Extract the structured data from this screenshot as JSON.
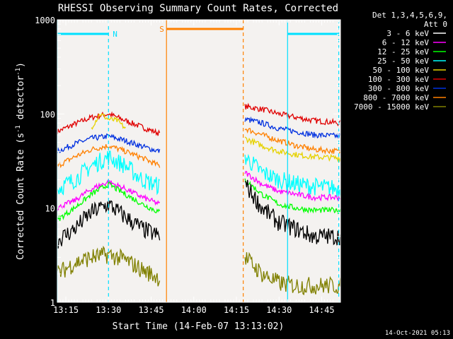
{
  "chart_data": {
    "type": "line",
    "title": "RHESSI Observing Summary Count Rates, Corrected",
    "xlabel": "Start Time (14-Feb-07 13:13:02)",
    "ylabel_main": "Corrected Count Rate (s",
    "ylabel_sup1": "-1",
    "ylabel_mid": " detector",
    "ylabel_sup2": "-1",
    "ylabel_end": ")",
    "y_scale": "log",
    "ylim": [
      1,
      1000
    ],
    "xlim_minutes": [
      13.2,
      14.86
    ],
    "x_ticks": [
      {
        "t": 13.25,
        "label": "13:15"
      },
      {
        "t": 13.5,
        "label": "13:30"
      },
      {
        "t": 13.75,
        "label": "13:45"
      },
      {
        "t": 14.0,
        "label": "14:00"
      },
      {
        "t": 14.25,
        "label": "14:15"
      },
      {
        "t": 14.5,
        "label": "14:30"
      },
      {
        "t": 14.75,
        "label": "14:45"
      }
    ],
    "y_ticks": [
      {
        "v": 1,
        "label": "1"
      },
      {
        "v": 10,
        "label": "10"
      },
      {
        "v": 100,
        "label": "100"
      },
      {
        "v": 1000,
        "label": "1000"
      }
    ],
    "legend": {
      "header1": "Det 1,3,4,5,6,9,",
      "header2": "Att 0",
      "placement": "right",
      "entries": [
        {
          "label": "3 - 6 keV",
          "color": "#000000"
        },
        {
          "label": "6 - 12 keV",
          "color": "#ff00ff"
        },
        {
          "label": "12 - 25 keV",
          "color": "#00ff00"
        },
        {
          "label": "25 - 50 keV",
          "color": "#00ffff"
        },
        {
          "label": "50 - 100 keV",
          "color": "#e6d200"
        },
        {
          "label": "100 - 300 keV",
          "color": "#e00000"
        },
        {
          "label": "300 - 800 keV",
          "color": "#0030e0"
        },
        {
          "label": "800 - 7000 keV",
          "color": "#ff8000"
        },
        {
          "label": "7000 - 15000 keV",
          "color": "#808000"
        }
      ]
    },
    "annotations": [
      {
        "label": "N",
        "color": "#00e0ff",
        "t_start": 13.2,
        "t_end": 13.5
      },
      {
        "label": "S",
        "color": "#ff8000",
        "t_start": 13.84,
        "t_end": 14.29
      },
      {
        "label": "",
        "color": "#00e0ff",
        "t_start": 14.55,
        "t_end": 14.85
      }
    ],
    "vlines": [
      {
        "t": 13.2,
        "color": "#00e0ff",
        "style": "solid"
      },
      {
        "t": 13.5,
        "color": "#00e0ff",
        "style": "dashed"
      },
      {
        "t": 13.84,
        "color": "#ff8000",
        "style": "solid"
      },
      {
        "t": 14.29,
        "color": "#ff8000",
        "style": "dashed"
      },
      {
        "t": 14.55,
        "color": "#00e0ff",
        "style": "solid"
      },
      {
        "t": 14.85,
        "color": "#00e0ff",
        "style": "dashed"
      }
    ],
    "series": [
      {
        "name": "100 - 300 keV",
        "color": "#e00000",
        "segment1": {
          "t": [
            13.2,
            13.3,
            13.4,
            13.5,
            13.6,
            13.7,
            13.8
          ],
          "v": [
            65,
            78,
            92,
            100,
            85,
            72,
            62
          ]
        },
        "segment2": {
          "t": [
            14.3,
            14.4,
            14.5,
            14.6,
            14.7,
            14.86
          ],
          "v": [
            120,
            112,
            100,
            92,
            85,
            80
          ]
        }
      },
      {
        "name": "300 - 800 keV",
        "color": "#0030e0",
        "segment1": {
          "t": [
            13.2,
            13.3,
            13.4,
            13.5,
            13.6,
            13.7,
            13.8
          ],
          "v": [
            40,
            48,
            55,
            58,
            52,
            45,
            40
          ]
        },
        "segment2": {
          "t": [
            14.3,
            14.4,
            14.5,
            14.6,
            14.7,
            14.86
          ],
          "v": [
            88,
            80,
            70,
            65,
            60,
            58
          ]
        }
      },
      {
        "name": "800 - 7000 keV",
        "color": "#ff8000",
        "segment1": {
          "t": [
            13.2,
            13.3,
            13.4,
            13.5,
            13.6,
            13.7,
            13.8
          ],
          "v": [
            28,
            35,
            42,
            46,
            40,
            34,
            28
          ]
        },
        "segment2": {
          "t": [
            14.3,
            14.4,
            14.5,
            14.6,
            14.7,
            14.86
          ],
          "v": [
            70,
            60,
            52,
            46,
            42,
            40
          ]
        }
      },
      {
        "name": "50 - 100 keV",
        "color": "#e6d200",
        "segment1": {
          "t": [
            13.4,
            13.45,
            13.5,
            13.55,
            13.6
          ],
          "v": [
            72,
            100,
            88,
            85,
            70
          ]
        },
        "segment2": {
          "t": [
            14.3,
            14.4,
            14.5,
            14.6,
            14.7,
            14.86
          ],
          "v": [
            55,
            46,
            40,
            37,
            35,
            34
          ]
        }
      },
      {
        "name": "25 - 50 keV",
        "color": "#00ffff",
        "segment1": {
          "t": [
            13.2,
            13.3,
            13.4,
            13.5,
            13.6,
            13.7,
            13.8
          ],
          "v": [
            16,
            20,
            28,
            35,
            28,
            20,
            17
          ]
        },
        "segment2": {
          "t": [
            14.3,
            14.4,
            14.5,
            14.6,
            14.7,
            14.86
          ],
          "v": [
            35,
            24,
            20,
            18,
            17,
            16
          ]
        }
      },
      {
        "name": "6 - 12 keV",
        "color": "#ff00ff",
        "segment1": {
          "t": [
            13.2,
            13.3,
            13.4,
            13.5,
            13.6,
            13.7,
            13.8
          ],
          "v": [
            10,
            12,
            16,
            19,
            16,
            13,
            11
          ]
        },
        "segment2": {
          "t": [
            14.3,
            14.4,
            14.5,
            14.6,
            14.7,
            14.86
          ],
          "v": [
            24,
            18,
            15,
            14,
            13,
            13
          ]
        }
      },
      {
        "name": "12 - 25 keV",
        "color": "#00ff00",
        "segment1": {
          "t": [
            13.2,
            13.3,
            13.4,
            13.5,
            13.6,
            13.7,
            13.8
          ],
          "v": [
            7.5,
            10,
            14,
            18,
            14,
            11,
            9
          ]
        },
        "segment2": {
          "t": [
            14.3,
            14.4,
            14.5,
            14.6,
            14.7,
            14.86
          ],
          "v": [
            20,
            14,
            11,
            10,
            9.5,
            9.5
          ]
        }
      },
      {
        "name": "3 - 6 keV",
        "color": "#000000",
        "segment1": {
          "t": [
            13.2,
            13.3,
            13.4,
            13.5,
            13.6,
            13.7,
            13.8
          ],
          "v": [
            4.5,
            6,
            9,
            11,
            8,
            6,
            5
          ]
        },
        "segment2": {
          "t": [
            14.3,
            14.4,
            14.5,
            14.6,
            14.7,
            14.86
          ],
          "v": [
            18,
            10,
            7,
            6,
            5,
            5
          ]
        }
      },
      {
        "name": "7000 - 15000 keV",
        "color": "#808000",
        "segment1": {
          "t": [
            13.2,
            13.3,
            13.4,
            13.5,
            13.6,
            13.7,
            13.8
          ],
          "v": [
            2,
            2.6,
            3.0,
            3.2,
            2.8,
            2.2,
            1.8
          ]
        },
        "segment2": {
          "t": [
            14.3,
            14.4,
            14.5,
            14.6,
            14.7,
            14.86
          ],
          "v": [
            3,
            2,
            1.6,
            1.5,
            1.5,
            1.5
          ]
        }
      }
    ]
  },
  "footer": {
    "timestamp": "14-Oct-2021 05:13"
  }
}
